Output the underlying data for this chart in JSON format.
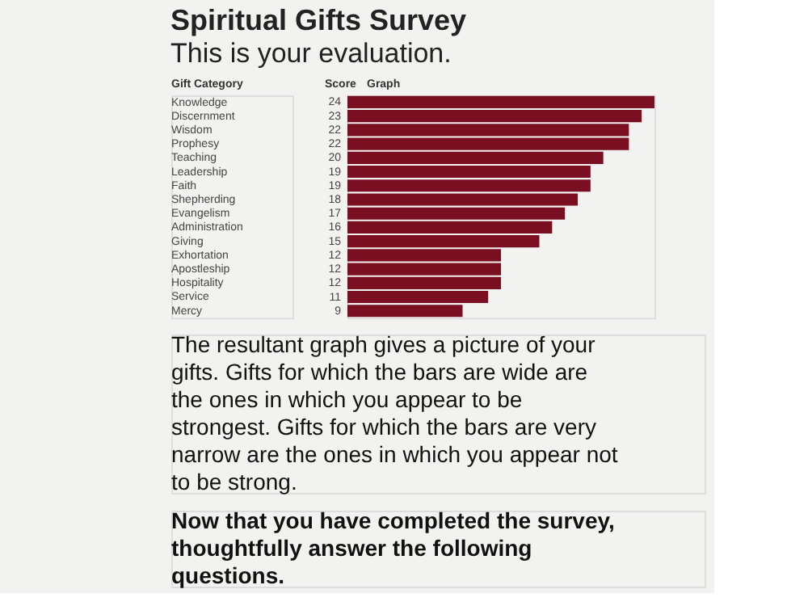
{
  "chart_data": {
    "type": "bar",
    "orientation": "horizontal",
    "title": "Spiritual Gifts Survey",
    "subtitle": "This is your evaluation.",
    "ylabel": "Gift Category",
    "xlabel": "Graph",
    "categories": [
      "Knowledge",
      "Discernment",
      "Wisdom",
      "Prophesy",
      "Teaching",
      "Leadership",
      "Faith",
      "Shepherding",
      "Evangelism",
      "Administration",
      "Giving",
      "Exhortation",
      "Apostleship",
      "Hospitality",
      "Service",
      "Mercy"
    ],
    "values": [
      24,
      23,
      22,
      22,
      20,
      19,
      19,
      18,
      17,
      16,
      15,
      12,
      12,
      12,
      11,
      9
    ],
    "color": "#7a0f22",
    "data_labels": true,
    "grid": false,
    "annotations": [
      "Score",
      "The resultant graph gives a picture of your gifts. Gifts for which the bars are wide are the ones in which you appear to be strongest. Gifts for which the bars are very narrow are the ones in which you appear not to be strong.",
      "Now that you have completed the survey, thoughtfully answer the following questions."
    ]
  }
}
